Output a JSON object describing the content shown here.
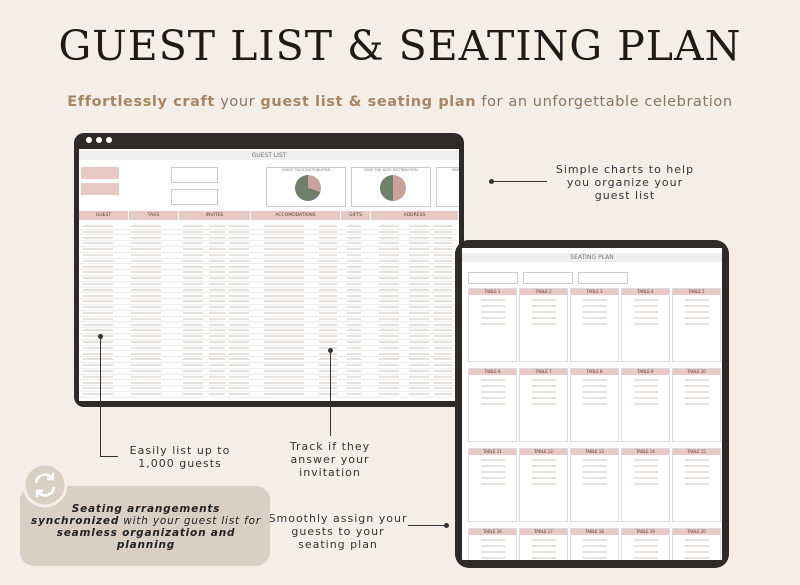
{
  "header": {
    "title": "GUEST LIST & SEATING PLAN",
    "subtitle": [
      {
        "text": "Effortlessly craft",
        "bold": true
      },
      {
        "text": " your ",
        "bold": false
      },
      {
        "text": "guest list & seating plan",
        "bold": true
      },
      {
        "text": " for an unforgettable celebration",
        "bold": false
      }
    ]
  },
  "guest_list": {
    "title": "GUEST LIST",
    "charts": [
      "GUEST TAGS DISTRIBUTION",
      "SAVE THE DATE DISTRIBUTION",
      "INVITATIONS DISTRIBUTION"
    ],
    "sections": [
      "GUEST",
      "TAGS",
      "INVITES",
      "ACCOMODATIONS",
      "GIFTS",
      "ADDRESS"
    ]
  },
  "seating_plan": {
    "title": "SEATING PLAN",
    "tables": [
      "TABLE 1",
      "TABLE 2",
      "TABLE 3",
      "TABLE 4",
      "TABLE 5",
      "TABLE 6",
      "TABLE 7",
      "TABLE 8",
      "TABLE 9",
      "TABLE 10",
      "TABLE 11",
      "TABLE 12",
      "TABLE 13",
      "TABLE 14",
      "TABLE 15",
      "TABLE 16",
      "TABLE 17",
      "TABLE 18",
      "TABLE 19",
      "TABLE 20"
    ]
  },
  "callouts": {
    "charts": "Simple charts to help you organize your guest list",
    "guests": "Easily list up to 1,000 guests",
    "track": "Track if they answer your invitation",
    "assign": "Smoothly assign your guests to your seating plan"
  },
  "badge": [
    {
      "text": "Seating arrangements synchronized",
      "bold": true
    },
    {
      "text": " with your guest list for ",
      "bold": false
    },
    {
      "text": "seamless organization and planning",
      "bold": true
    }
  ]
}
